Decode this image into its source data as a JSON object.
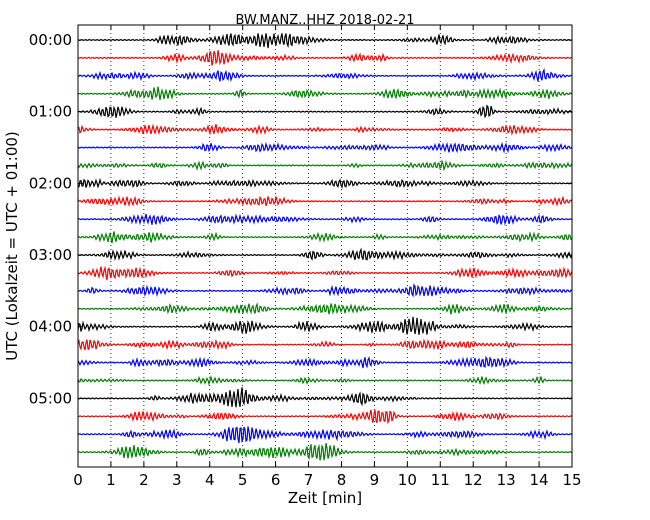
{
  "chart_data": {
    "type": "line",
    "title": "BW.MANZ..HHZ 2018-02-21",
    "xlabel": "Zeit  [min]",
    "ylabel": "UTC (Lokalzeit = UTC + 01:00)",
    "xlim": [
      0,
      15
    ],
    "xticks": [
      "0",
      "1",
      "2",
      "3",
      "4",
      "5",
      "6",
      "7",
      "8",
      "9",
      "10",
      "11",
      "12",
      "13",
      "14",
      "15"
    ],
    "y_tick_labels": [
      "00:00",
      "01:00",
      "02:00",
      "03:00",
      "04:00",
      "05:00"
    ],
    "vertical_grid": "dotted",
    "trace_colors": [
      "#000000",
      "#ff0000",
      "#0000ff",
      "#007f00"
    ],
    "traces": [
      {
        "start": "00:00"
      },
      {
        "start": "00:15"
      },
      {
        "start": "00:30"
      },
      {
        "start": "00:45"
      },
      {
        "start": "01:00"
      },
      {
        "start": "01:15"
      },
      {
        "start": "01:30"
      },
      {
        "start": "01:45"
      },
      {
        "start": "02:00"
      },
      {
        "start": "02:15"
      },
      {
        "start": "02:30"
      },
      {
        "start": "02:45"
      },
      {
        "start": "03:00"
      },
      {
        "start": "03:15"
      },
      {
        "start": "03:30"
      },
      {
        "start": "03:45"
      },
      {
        "start": "04:00"
      },
      {
        "start": "04:15"
      },
      {
        "start": "04:30"
      },
      {
        "start": "04:45"
      },
      {
        "start": "05:00"
      },
      {
        "start": "05:15"
      },
      {
        "start": "05:30"
      },
      {
        "start": "05:45"
      }
    ]
  }
}
